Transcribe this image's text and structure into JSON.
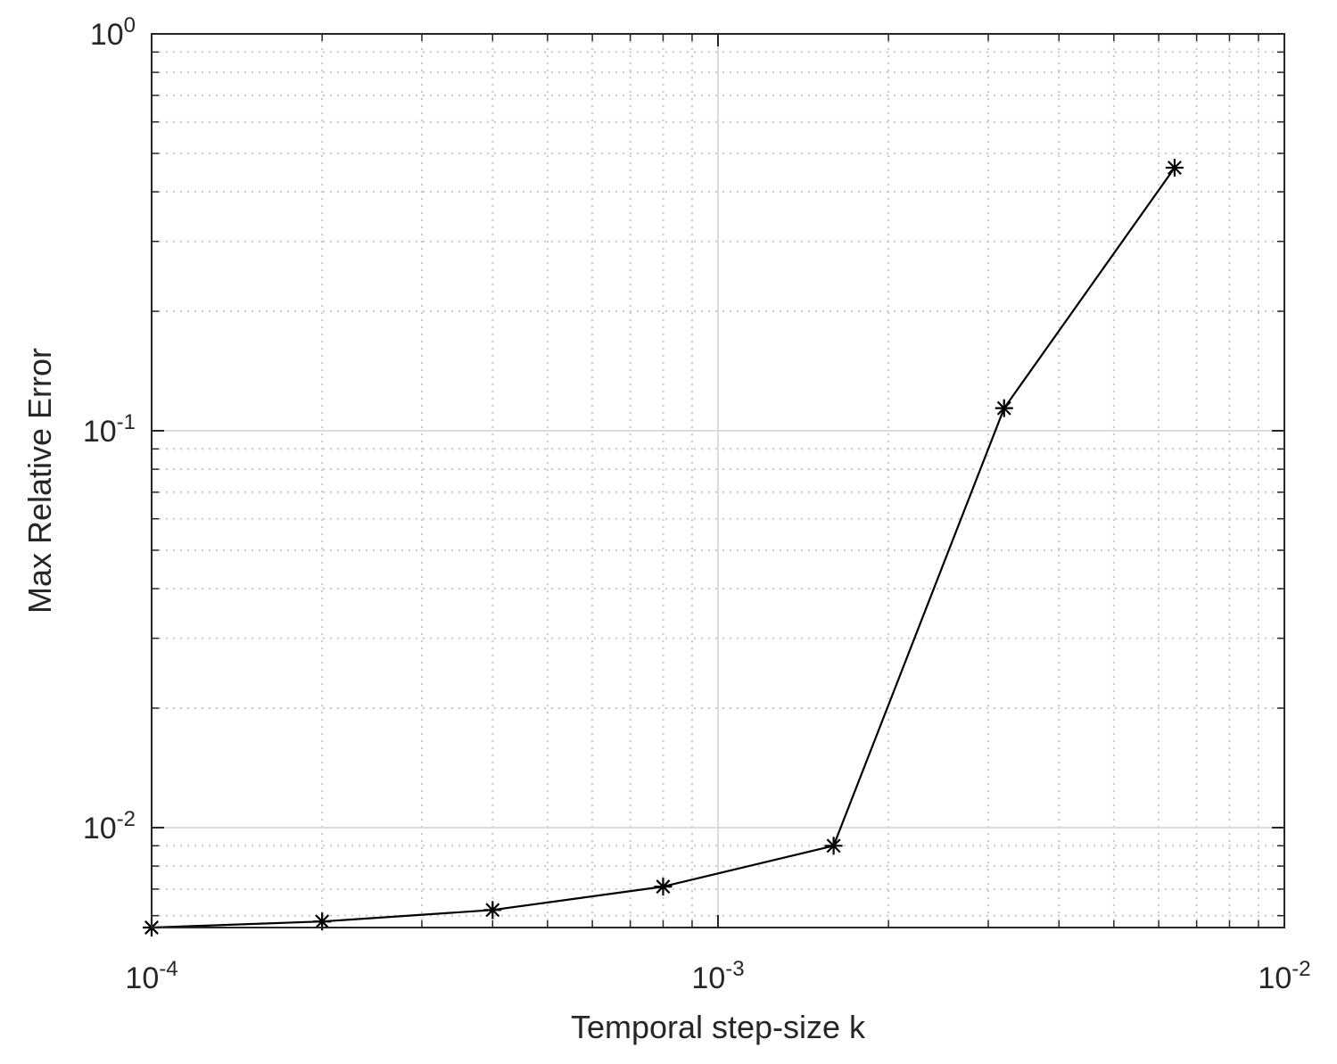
{
  "chart_data": {
    "type": "line",
    "title": "",
    "xlabel": "Temporal step-size k",
    "ylabel": "Max Relative Error",
    "xscale": "log",
    "yscale": "log",
    "xlim": [
      0.0001,
      0.01
    ],
    "ylim": [
      0.0056,
      1
    ],
    "grid": true,
    "minor_grid": true,
    "legend": "none",
    "x_ticks": [
      {
        "base": "10",
        "exp": "-4",
        "value": 0.0001
      },
      {
        "base": "10",
        "exp": "-3",
        "value": 0.001
      },
      {
        "base": "10",
        "exp": "-2",
        "value": 0.01
      }
    ],
    "y_ticks": [
      {
        "base": "10",
        "exp": "-2",
        "value": 0.01
      },
      {
        "base": "10",
        "exp": "-1",
        "value": 0.1
      },
      {
        "base": "10",
        "exp": "0",
        "value": 1
      }
    ],
    "series": [
      {
        "color": "#000000",
        "marker": "asterisk",
        "x": [
          0.0001,
          0.0002,
          0.0004,
          0.0008,
          0.0016,
          0.0032,
          0.0064
        ],
        "y": [
          0.0056,
          0.0058,
          0.0062,
          0.0071,
          0.009,
          0.114,
          0.46
        ]
      }
    ]
  }
}
